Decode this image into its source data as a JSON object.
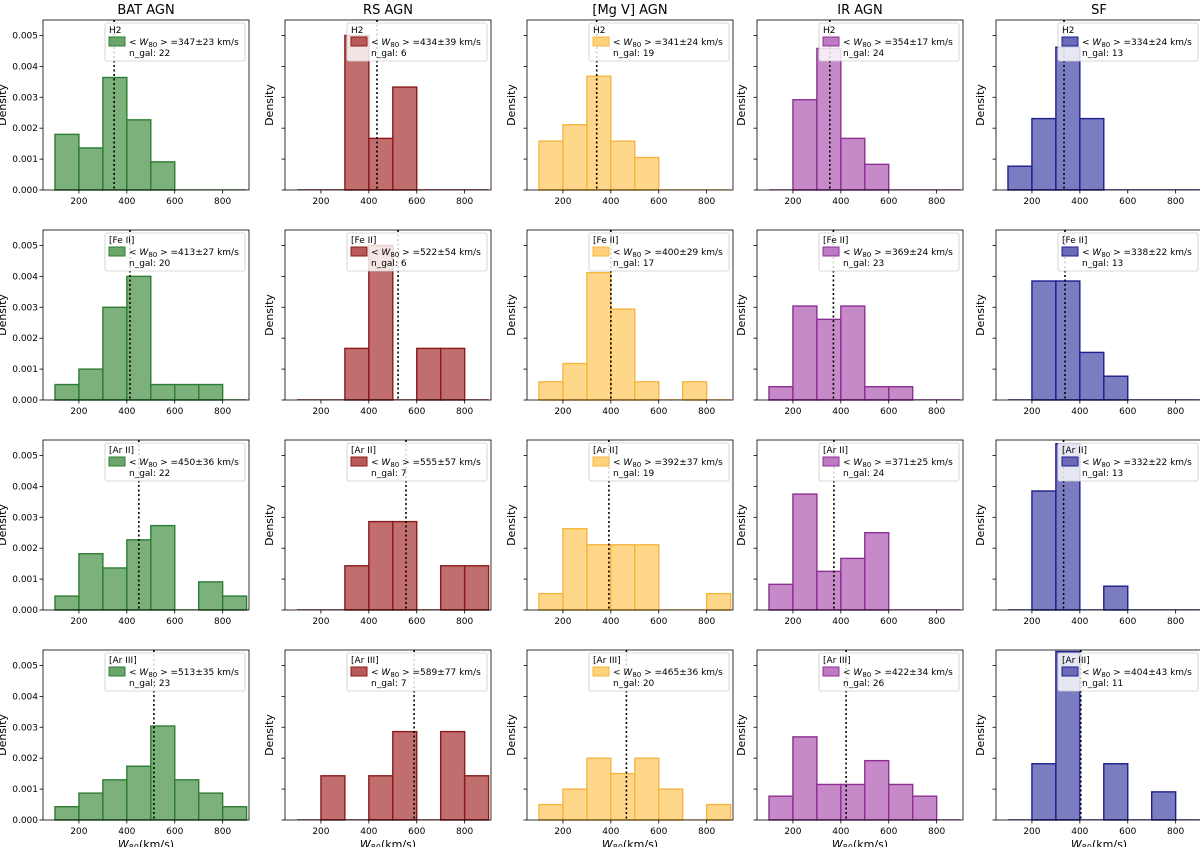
{
  "figure": {
    "column_titles": [
      "BAT AGN",
      "RS AGN",
      "[Mg V] AGN",
      "IR AGN",
      "SF"
    ],
    "ylabel": "Density",
    "xlabel_main": "W",
    "xlabel_sub": "80",
    "xlabel_unit": "(km/s)"
  },
  "chart_data": {
    "type": "histogram",
    "xlim": [
      50,
      910
    ],
    "ylim": [
      0,
      0.0055
    ],
    "xticks": [
      "200",
      "400",
      "600",
      "800"
    ],
    "yticks": [
      "0.000",
      "0.001",
      "0.002",
      "0.003",
      "0.004",
      "0.005"
    ],
    "bin_edges": [
      100,
      200,
      300,
      400,
      500,
      600,
      700,
      800,
      900
    ],
    "series_colors": [
      {
        "fill": "#6aa66a",
        "edge": "#2e7d32"
      },
      {
        "fill": "#b85a5a",
        "edge": "#8b1a1a"
      },
      {
        "fill": "#ffd27a",
        "edge": "#f5b640"
      },
      {
        "fill": "#be7ac2",
        "edge": "#8e2f94"
      },
      {
        "fill": "#6a6ab8",
        "edge": "#1f1f8f"
      }
    ],
    "panels": [
      {
        "row": 0,
        "col": 0,
        "line": "H2",
        "mean_text": "=347±23 km/s",
        "mean": 347,
        "ngal_text": "n_gal: 22",
        "values": [
          0.0018,
          0.00136,
          0.00364,
          0.00227,
          0.00091,
          0,
          0,
          0
        ]
      },
      {
        "row": 0,
        "col": 1,
        "line": "H2",
        "mean_text": "=434±39 km/s",
        "mean": 434,
        "ngal_text": "n_gal: 6",
        "values": [
          0,
          0,
          0.005,
          0.00167,
          0.00333,
          0,
          0,
          0
        ]
      },
      {
        "row": 0,
        "col": 2,
        "line": "H2",
        "mean_text": "=341±24 km/s",
        "mean": 341,
        "ngal_text": "n_gal: 19",
        "values": [
          0.00158,
          0.00211,
          0.00368,
          0.00158,
          0.00105,
          0,
          0,
          0
        ]
      },
      {
        "row": 0,
        "col": 3,
        "line": "H2",
        "mean_text": "=354±17 km/s",
        "mean": 354,
        "ngal_text": "n_gal: 24",
        "values": [
          0,
          0.00292,
          0.00458,
          0.00167,
          0.00083,
          0,
          0,
          0
        ]
      },
      {
        "row": 0,
        "col": 4,
        "line": "H2",
        "mean_text": "=334±24 km/s",
        "mean": 334,
        "ngal_text": "n_gal: 13",
        "values": [
          0.00077,
          0.00231,
          0.00462,
          0.00231,
          0,
          0,
          0,
          0
        ]
      },
      {
        "row": 1,
        "col": 0,
        "line": "[Fe II]",
        "mean_text": "=413±27 km/s",
        "mean": 413,
        "ngal_text": "n_gal: 20",
        "values": [
          0.0005,
          0.001,
          0.003,
          0.004,
          0.0005,
          0.0005,
          0.0005,
          0
        ]
      },
      {
        "row": 1,
        "col": 1,
        "line": "[Fe II]",
        "mean_text": "=522±54 km/s",
        "mean": 522,
        "ngal_text": "n_gal: 6",
        "values": [
          0,
          0,
          0.00167,
          0.005,
          0,
          0.00167,
          0.00167,
          0
        ]
      },
      {
        "row": 1,
        "col": 2,
        "line": "[Fe II]",
        "mean_text": "=400±29 km/s",
        "mean": 400,
        "ngal_text": "n_gal: 17",
        "values": [
          0.00059,
          0.00118,
          0.00412,
          0.00294,
          0.00059,
          0,
          0.00059,
          0
        ]
      },
      {
        "row": 1,
        "col": 3,
        "line": "[Fe II]",
        "mean_text": "=369±24 km/s",
        "mean": 369,
        "ngal_text": "n_gal: 23",
        "values": [
          0.00043,
          0.00304,
          0.00261,
          0.00304,
          0.00043,
          0.00043,
          0,
          0
        ]
      },
      {
        "row": 1,
        "col": 4,
        "line": "[Fe II]",
        "mean_text": "=338±22 km/s",
        "mean": 338,
        "ngal_text": "n_gal: 13",
        "values": [
          0,
          0.00385,
          0.00385,
          0.00154,
          0.00077,
          0,
          0,
          0
        ]
      },
      {
        "row": 2,
        "col": 0,
        "line": "[Ar II]",
        "mean_text": "=450±36 km/s",
        "mean": 450,
        "ngal_text": "n_gal: 22",
        "values": [
          0.00045,
          0.00182,
          0.00136,
          0.00227,
          0.00273,
          0,
          0.00091,
          0.00045
        ]
      },
      {
        "row": 2,
        "col": 1,
        "line": "[Ar II]",
        "mean_text": "=555±57 km/s",
        "mean": 555,
        "ngal_text": "n_gal: 7",
        "values": [
          0,
          0,
          0.00143,
          0.00286,
          0.00286,
          0,
          0.00143,
          0.00143
        ]
      },
      {
        "row": 2,
        "col": 2,
        "line": "[Ar II]",
        "mean_text": "=392±37 km/s",
        "mean": 392,
        "ngal_text": "n_gal: 19",
        "values": [
          0.00053,
          0.00263,
          0.00211,
          0.00211,
          0.00211,
          0,
          0,
          0.00053
        ]
      },
      {
        "row": 2,
        "col": 3,
        "line": "[Ar II]",
        "mean_text": "=371±25 km/s",
        "mean": 371,
        "ngal_text": "n_gal: 24",
        "values": [
          0.00083,
          0.00375,
          0.00125,
          0.00167,
          0.0025,
          0,
          0,
          0
        ]
      },
      {
        "row": 2,
        "col": 4,
        "line": "[Ar II]",
        "mean_text": "=332±22 km/s",
        "mean": 332,
        "ngal_text": "n_gal: 13",
        "values": [
          0,
          0.00385,
          0.00538,
          0,
          0.00077,
          0,
          0,
          0
        ]
      },
      {
        "row": 3,
        "col": 0,
        "line": "[Ar III]",
        "mean_text": "=513±35 km/s",
        "mean": 513,
        "ngal_text": "n_gal: 23",
        "values": [
          0.00043,
          0.00087,
          0.0013,
          0.00174,
          0.00304,
          0.0013,
          0.00087,
          0.00043
        ]
      },
      {
        "row": 3,
        "col": 1,
        "line": "[Ar III]",
        "mean_text": "=589±77 km/s",
        "mean": 589,
        "ngal_text": "n_gal: 7",
        "values": [
          0,
          0.00143,
          0,
          0.00143,
          0.00286,
          0,
          0.00286,
          0.00143
        ]
      },
      {
        "row": 3,
        "col": 2,
        "line": "[Ar III]",
        "mean_text": "=465±36 km/s",
        "mean": 465,
        "ngal_text": "n_gal: 20",
        "values": [
          0.0005,
          0.001,
          0.002,
          0.0015,
          0.002,
          0.001,
          0,
          0.0005
        ]
      },
      {
        "row": 3,
        "col": 3,
        "line": "[Ar III]",
        "mean_text": "=422±34 km/s",
        "mean": 422,
        "ngal_text": "n_gal: 26",
        "values": [
          0.00077,
          0.00269,
          0.00115,
          0.00115,
          0.00192,
          0.00115,
          0.00077,
          0
        ]
      },
      {
        "row": 3,
        "col": 4,
        "line": "[Ar III]",
        "mean_text": "=404±43 km/s",
        "mean": 404,
        "ngal_text": "n_gal: 11",
        "values": [
          0,
          0.00182,
          0.00545,
          0,
          0.00182,
          0,
          0.00091,
          0
        ]
      }
    ]
  }
}
